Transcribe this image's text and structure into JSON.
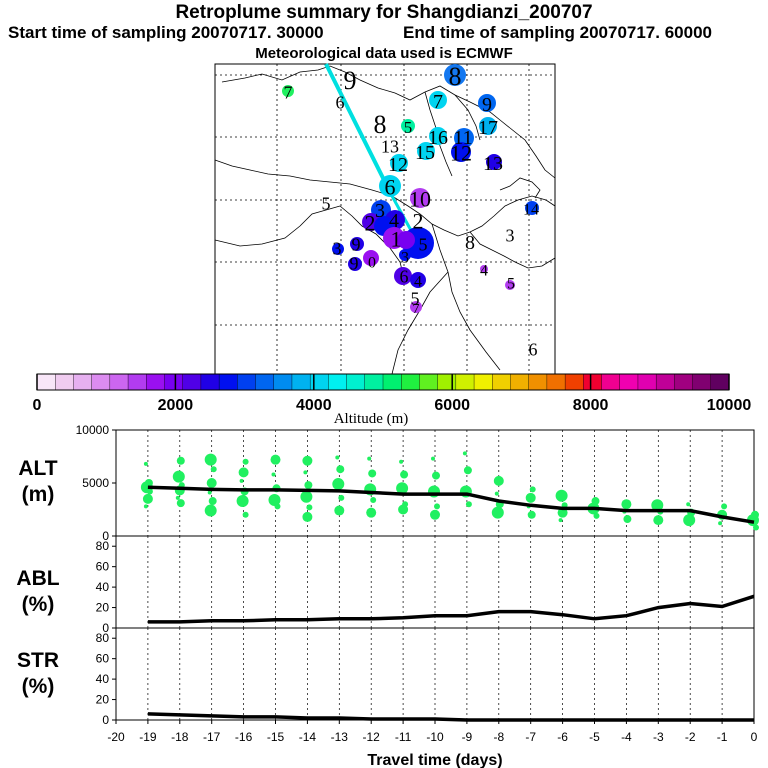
{
  "titles": {
    "main": "Retroplume summary for Shangdianzi_200707",
    "start": "Start time of sampling 20070717. 30000",
    "end": "End time of sampling 20070717. 60000",
    "met": "Meteorological data used is ECMWF"
  },
  "colorbar": {
    "label": "Altitude (m)",
    "ticks": [
      "0",
      "2000",
      "4000",
      "6000",
      "8000",
      "10000"
    ],
    "colors": [
      "#f8e6f8",
      "#f0ccf0",
      "#e6b0f0",
      "#dc8cf0",
      "#cc66f0",
      "#b23cf0",
      "#9a10f0",
      "#7800f0",
      "#5000e6",
      "#2000e6",
      "#0010f0",
      "#0040f0",
      "#0066f0",
      "#008cf0",
      "#00b2f0",
      "#00d4f0",
      "#00f0f0",
      "#00f0d0",
      "#00f0a0",
      "#00f070",
      "#20f040",
      "#60f020",
      "#a0f000",
      "#d0f000",
      "#f0f000",
      "#f0d000",
      "#f0b000",
      "#f09000",
      "#f07000",
      "#f04000",
      "#f00030",
      "#f00090",
      "#f000b0",
      "#e000b0",
      "#c00098",
      "#a00080",
      "#800070",
      "#600060"
    ]
  },
  "map": {
    "labels": [
      {
        "t": "9",
        "x": 350,
        "y": 80,
        "s": 26
      },
      {
        "t": "8",
        "x": 455,
        "y": 76,
        "s": 26
      },
      {
        "t": "7",
        "x": 288,
        "y": 92,
        "s": 18
      },
      {
        "t": "6",
        "x": 340,
        "y": 102,
        "s": 18
      },
      {
        "t": "7",
        "x": 438,
        "y": 101,
        "s": 20
      },
      {
        "t": "9",
        "x": 487,
        "y": 104,
        "s": 20
      },
      {
        "t": "8",
        "x": 380,
        "y": 124,
        "s": 26
      },
      {
        "t": "5",
        "x": 408,
        "y": 127,
        "s": 17
      },
      {
        "t": "17",
        "x": 488,
        "y": 127,
        "s": 20
      },
      {
        "t": "16",
        "x": 438,
        "y": 137,
        "s": 20
      },
      {
        "t": "11",
        "x": 463,
        "y": 137,
        "s": 20
      },
      {
        "t": "13",
        "x": 390,
        "y": 146,
        "s": 18
      },
      {
        "t": "15",
        "x": 425,
        "y": 152,
        "s": 20
      },
      {
        "t": "12",
        "x": 461,
        "y": 153,
        "s": 22
      },
      {
        "t": "12",
        "x": 398,
        "y": 164,
        "s": 20
      },
      {
        "t": "13",
        "x": 493,
        "y": 163,
        "s": 20
      },
      {
        "t": "6",
        "x": 390,
        "y": 187,
        "s": 22
      },
      {
        "t": "10",
        "x": 420,
        "y": 199,
        "s": 22
      },
      {
        "t": "5",
        "x": 326,
        "y": 203,
        "s": 18
      },
      {
        "t": "14",
        "x": 531,
        "y": 209,
        "s": 16
      },
      {
        "t": "3",
        "x": 380,
        "y": 210,
        "s": 20
      },
      {
        "t": "2",
        "x": 418,
        "y": 221,
        "s": 22
      },
      {
        "t": "2",
        "x": 370,
        "y": 223,
        "s": 22
      },
      {
        "t": "4",
        "x": 394,
        "y": 220,
        "s": 20
      },
      {
        "t": "3",
        "x": 510,
        "y": 235,
        "s": 18
      },
      {
        "t": "1",
        "x": 396,
        "y": 239,
        "s": 22
      },
      {
        "t": "8",
        "x": 470,
        "y": 242,
        "s": 20
      },
      {
        "t": "3",
        "x": 337,
        "y": 248,
        "s": 18
      },
      {
        "t": "5",
        "x": 423,
        "y": 244,
        "s": 18
      },
      {
        "t": "9",
        "x": 356,
        "y": 244,
        "s": 18
      },
      {
        "t": "3",
        "x": 405,
        "y": 257,
        "s": 16
      },
      {
        "t": "9",
        "x": 354,
        "y": 263,
        "s": 18
      },
      {
        "t": "0",
        "x": 372,
        "y": 262,
        "s": 16
      },
      {
        "t": "4",
        "x": 484,
        "y": 270,
        "s": 16
      },
      {
        "t": "6",
        "x": 404,
        "y": 276,
        "s": 18
      },
      {
        "t": "4",
        "x": 418,
        "y": 281,
        "s": 16
      },
      {
        "t": "5",
        "x": 511,
        "y": 283,
        "s": 16
      },
      {
        "t": "5",
        "x": 415,
        "y": 298,
        "s": 18
      },
      {
        "t": "7",
        "x": 416,
        "y": 308,
        "s": 14
      },
      {
        "t": "6",
        "x": 533,
        "y": 349,
        "s": 18
      }
    ],
    "dots": [
      {
        "x": 455,
        "y": 75,
        "r": 11,
        "c": "#1478f0"
      },
      {
        "x": 288,
        "y": 91,
        "r": 6,
        "c": "#20f060"
      },
      {
        "x": 438,
        "y": 100,
        "r": 9,
        "c": "#00d4f0"
      },
      {
        "x": 487,
        "y": 103,
        "r": 9,
        "c": "#0066f0"
      },
      {
        "x": 408,
        "y": 126,
        "r": 7,
        "c": "#00f0a0"
      },
      {
        "x": 488,
        "y": 126,
        "r": 9,
        "c": "#00b2f0"
      },
      {
        "x": 438,
        "y": 136,
        "r": 9,
        "c": "#00d4f0"
      },
      {
        "x": 464,
        "y": 138,
        "r": 10,
        "c": "#0066f0"
      },
      {
        "x": 426,
        "y": 151,
        "r": 9,
        "c": "#00d4f0"
      },
      {
        "x": 461,
        "y": 152,
        "r": 10,
        "c": "#0010f0"
      },
      {
        "x": 494,
        "y": 162,
        "r": 8,
        "c": "#2000e6"
      },
      {
        "x": 399,
        "y": 163,
        "r": 9,
        "c": "#00d4f0"
      },
      {
        "x": 390,
        "y": 186,
        "r": 11,
        "c": "#00d4f0"
      },
      {
        "x": 420,
        "y": 198,
        "r": 10,
        "c": "#b23cf0"
      },
      {
        "x": 381,
        "y": 210,
        "r": 10,
        "c": "#0040f0"
      },
      {
        "x": 371,
        "y": 222,
        "r": 9,
        "c": "#5000e6"
      },
      {
        "x": 395,
        "y": 220,
        "r": 10,
        "c": "#2000e6"
      },
      {
        "x": 384,
        "y": 226,
        "r": 10,
        "c": "#0010f0"
      },
      {
        "x": 532,
        "y": 208,
        "r": 7,
        "c": "#0040f0"
      },
      {
        "x": 418,
        "y": 243,
        "r": 16,
        "c": "#0010f0"
      },
      {
        "x": 394,
        "y": 238,
        "r": 11,
        "c": "#9a10f0"
      },
      {
        "x": 406,
        "y": 240,
        "r": 9,
        "c": "#7800f0"
      },
      {
        "x": 357,
        "y": 244,
        "r": 7,
        "c": "#2000e6"
      },
      {
        "x": 338,
        "y": 249,
        "r": 6,
        "c": "#0010f0"
      },
      {
        "x": 371,
        "y": 258,
        "r": 8,
        "c": "#9a10f0"
      },
      {
        "x": 355,
        "y": 264,
        "r": 7,
        "c": "#2000e6"
      },
      {
        "x": 403,
        "y": 276,
        "r": 9,
        "c": "#5000e6"
      },
      {
        "x": 418,
        "y": 280,
        "r": 8,
        "c": "#2000e6"
      },
      {
        "x": 484,
        "y": 269,
        "r": 4,
        "c": "#b23cf0"
      },
      {
        "x": 510,
        "y": 285,
        "r": 5,
        "c": "#b23cf0"
      },
      {
        "x": 416,
        "y": 307,
        "r": 6,
        "c": "#b23cf0"
      },
      {
        "x": 405,
        "y": 255,
        "r": 6,
        "c": "#0010f0"
      }
    ]
  },
  "chart_data": [
    {
      "type": "scatter",
      "panel": "ALT",
      "title": "ALT",
      "ylabel": "(m)",
      "ylim": [
        0,
        10000
      ],
      "yticks": [
        "10000",
        "5000",
        "0"
      ],
      "xlim": [
        -20,
        0
      ],
      "x": [
        -19,
        -18,
        -17,
        -16,
        -15,
        -14,
        -13,
        -12,
        -11,
        -10,
        -9,
        -8,
        -7,
        -6,
        -5,
        -4,
        -3,
        -2,
        -1,
        0
      ],
      "series": [
        {
          "name": "mean altitude",
          "values": [
            4600,
            4500,
            4400,
            4350,
            4350,
            4300,
            4250,
            4100,
            3950,
            3950,
            3950,
            3300,
            2900,
            2600,
            2600,
            2400,
            2400,
            2400,
            1800,
            1300
          ]
        },
        {
          "name": "plume members",
          "points": [
            [
              -19,
              6800
            ],
            [
              -19,
              5000
            ],
            [
              -19,
              4600
            ],
            [
              -19,
              4200
            ],
            [
              -19,
              3500
            ],
            [
              -19,
              2800
            ],
            [
              -18,
              7100
            ],
            [
              -18,
              5600
            ],
            [
              -18,
              4800
            ],
            [
              -18,
              4300
            ],
            [
              -18,
              3600
            ],
            [
              -18,
              3100
            ],
            [
              -17,
              7200
            ],
            [
              -17,
              6300
            ],
            [
              -17,
              5000
            ],
            [
              -17,
              4100
            ],
            [
              -17,
              3300
            ],
            [
              -17,
              2400
            ],
            [
              -16,
              7000
            ],
            [
              -16,
              6000
            ],
            [
              -16,
              5200
            ],
            [
              -16,
              4200
            ],
            [
              -16,
              3300
            ],
            [
              -16,
              2000
            ],
            [
              -15,
              7200
            ],
            [
              -15,
              5800
            ],
            [
              -15,
              4500
            ],
            [
              -15,
              3400
            ],
            [
              -15,
              2800
            ],
            [
              -14,
              7100
            ],
            [
              -14,
              6000
            ],
            [
              -14,
              4800
            ],
            [
              -14,
              3700
            ],
            [
              -14,
              2700
            ],
            [
              -14,
              1800
            ],
            [
              -13,
              7400
            ],
            [
              -13,
              6300
            ],
            [
              -13,
              4900
            ],
            [
              -13,
              3600
            ],
            [
              -13,
              2400
            ],
            [
              -12,
              7300
            ],
            [
              -12,
              5900
            ],
            [
              -12,
              4400
            ],
            [
              -12,
              3400
            ],
            [
              -12,
              2200
            ],
            [
              -11,
              7000
            ],
            [
              -11,
              5800
            ],
            [
              -11,
              4500
            ],
            [
              -11,
              3000
            ],
            [
              -11,
              2500
            ],
            [
              -10,
              7300
            ],
            [
              -10,
              5700
            ],
            [
              -10,
              4200
            ],
            [
              -10,
              2800
            ],
            [
              -10,
              2000
            ],
            [
              -9,
              7800
            ],
            [
              -9,
              6200
            ],
            [
              -9,
              4200
            ],
            [
              -9,
              3000
            ],
            [
              -8,
              5200
            ],
            [
              -8,
              4000
            ],
            [
              -8,
              3000
            ],
            [
              -8,
              2200
            ],
            [
              -7,
              4400
            ],
            [
              -7,
              3600
            ],
            [
              -7,
              2800
            ],
            [
              -7,
              2000
            ],
            [
              -6,
              3800
            ],
            [
              -6,
              2900
            ],
            [
              -6,
              2200
            ],
            [
              -6,
              1500
            ],
            [
              -5,
              3300
            ],
            [
              -5,
              2600
            ],
            [
              -5,
              1900
            ],
            [
              -4,
              3000
            ],
            [
              -4,
              2300
            ],
            [
              -4,
              1600
            ],
            [
              -3,
              2900
            ],
            [
              -3,
              2300
            ],
            [
              -3,
              1500
            ],
            [
              -2,
              3000
            ],
            [
              -2,
              2200
            ],
            [
              -2,
              1500
            ],
            [
              -1,
              2800
            ],
            [
              -1,
              2000
            ],
            [
              -1,
              1200
            ],
            [
              0,
              2000
            ],
            [
              0,
              1500
            ],
            [
              0,
              800
            ]
          ]
        }
      ]
    },
    {
      "type": "line",
      "panel": "ABL",
      "title": "ABL",
      "ylabel": "(%)",
      "ylim": [
        0,
        90
      ],
      "yticks": [
        "80",
        "60",
        "40",
        "20",
        "0"
      ],
      "xlim": [
        -20,
        0
      ],
      "x": [
        -19,
        -18,
        -17,
        -16,
        -15,
        -14,
        -13,
        -12,
        -11,
        -10,
        -9,
        -8,
        -7,
        -6,
        -5,
        -4,
        -3,
        -2,
        -1,
        0
      ],
      "series": [
        {
          "name": "ABL fraction",
          "values": [
            6,
            6,
            7,
            7,
            8,
            8,
            9,
            9,
            10,
            12,
            12,
            16,
            16,
            13,
            9,
            12,
            20,
            24,
            21,
            31
          ]
        }
      ]
    },
    {
      "type": "line",
      "panel": "STR",
      "title": "STR",
      "ylabel": "(%)",
      "ylim": [
        0,
        90
      ],
      "yticks": [
        "80",
        "60",
        "40",
        "20",
        "0"
      ],
      "xlim": [
        -20,
        0
      ],
      "x": [
        -19,
        -18,
        -17,
        -16,
        -15,
        -14,
        -13,
        -12,
        -11,
        -10,
        -9,
        -8,
        -7,
        -6,
        -5,
        -4,
        -3,
        -2,
        -1,
        0
      ],
      "series": [
        {
          "name": "stratospheric fraction",
          "values": [
            6,
            5,
            4,
            3,
            3,
            2,
            2,
            1,
            1,
            1,
            0,
            0,
            0,
            0,
            0,
            0,
            0,
            0,
            0,
            0
          ]
        }
      ],
      "xticks": [
        "-20",
        "-19",
        "-18",
        "-17",
        "-16",
        "-15",
        "-14",
        "-13",
        "-12",
        "-11",
        "-10",
        "-9",
        "-8",
        "-7",
        "-6",
        "-5",
        "-4",
        "-3",
        "-2",
        "-1",
        "0"
      ],
      "xlabel": "Travel time (days)"
    }
  ]
}
